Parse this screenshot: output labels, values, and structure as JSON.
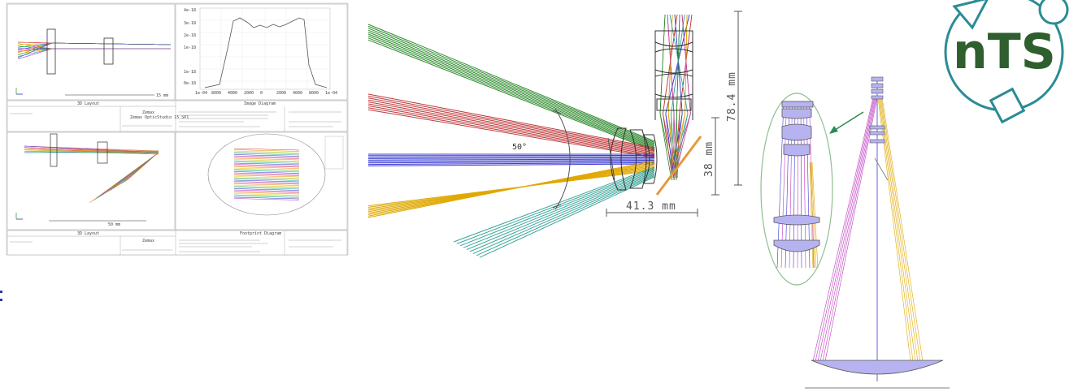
{
  "screenshot_panel": {
    "title_top": "Zemax",
    "title_bottom": "Zemax",
    "layout_label_top": "3D Layout",
    "layout_label_bottom": "3D Layout",
    "image_diagram_title": "Image Diagram",
    "footprint_title": "Footprint Diagram",
    "software_name": "Zemax OpticStudio 15 SP1",
    "scale_top": "15 mm",
    "scale_bottom": "50 mm",
    "axis_labels": [
      "1e-04",
      "8000",
      "4000",
      "2000",
      "0",
      "2000",
      "4000",
      "8000",
      "1e-04"
    ]
  },
  "main_diagram": {
    "angle_label": "50°",
    "dim_width": "41.3 mm",
    "dim_height_small": "38 mm",
    "dim_height_large": "78.4 mm",
    "colors": {
      "green": "#2e8b2e",
      "red": "#c0393b",
      "blue": "#3b3bd0",
      "yellow": "#e0a800",
      "teal": "#3aa59a",
      "mirror": "#e59a3a"
    }
  },
  "right_diagram": {
    "ellipse_color": "#8fbf8f",
    "arrow_color": "#2e8b57",
    "lens_fill": "#b7b3f0"
  },
  "logo": {
    "text": "nTS",
    "color": "#2f5e2f",
    "ring_color": "#2a8c94"
  }
}
